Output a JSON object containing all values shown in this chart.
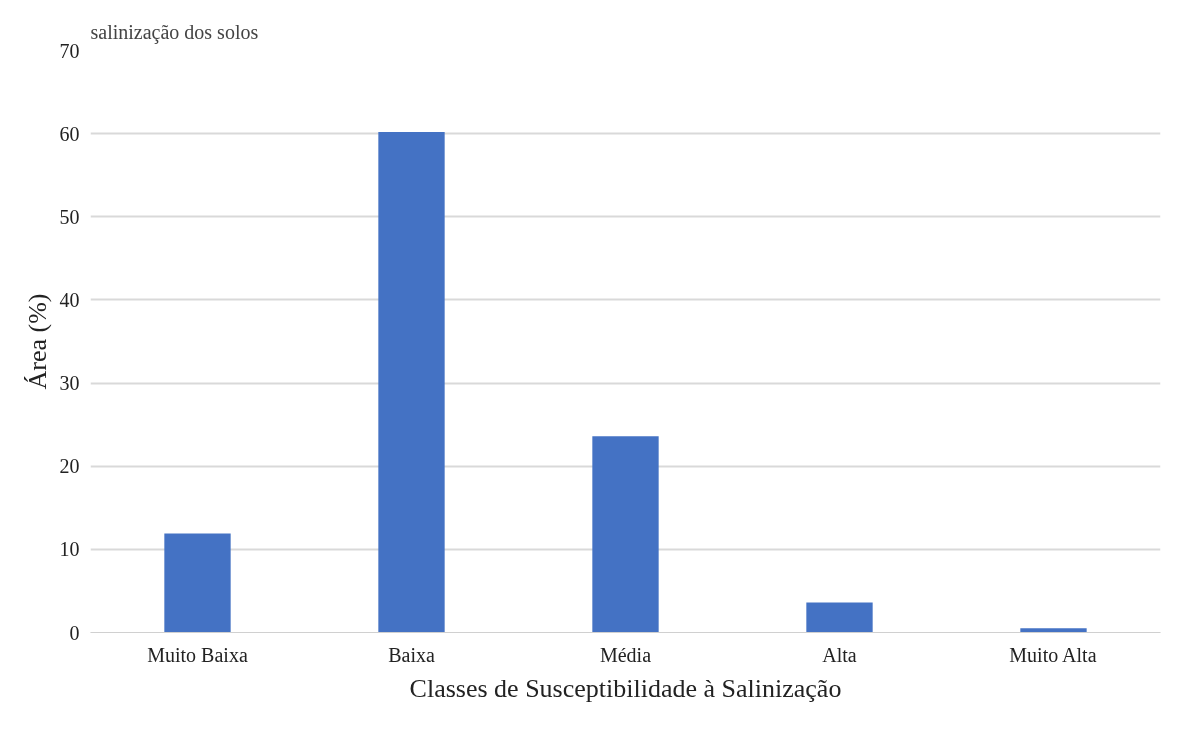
{
  "chart_data": {
    "type": "bar",
    "xlabel": "Classes de Susceptibilidade à Salinização",
    "ylabel": "Área (%)",
    "annotations": [
      "salinização dos solos"
    ],
    "categories": [
      "Muito Baixa",
      "Baixa",
      "Média",
      "Alta",
      "Muito Alta"
    ],
    "values": [
      11.9,
      60.2,
      23.6,
      3.6,
      0.5
    ],
    "color": "#4472c4",
    "ylim": [
      0,
      70
    ],
    "yticks": [
      0,
      10,
      20,
      30,
      40,
      50,
      60,
      70
    ],
    "grid": "y"
  }
}
